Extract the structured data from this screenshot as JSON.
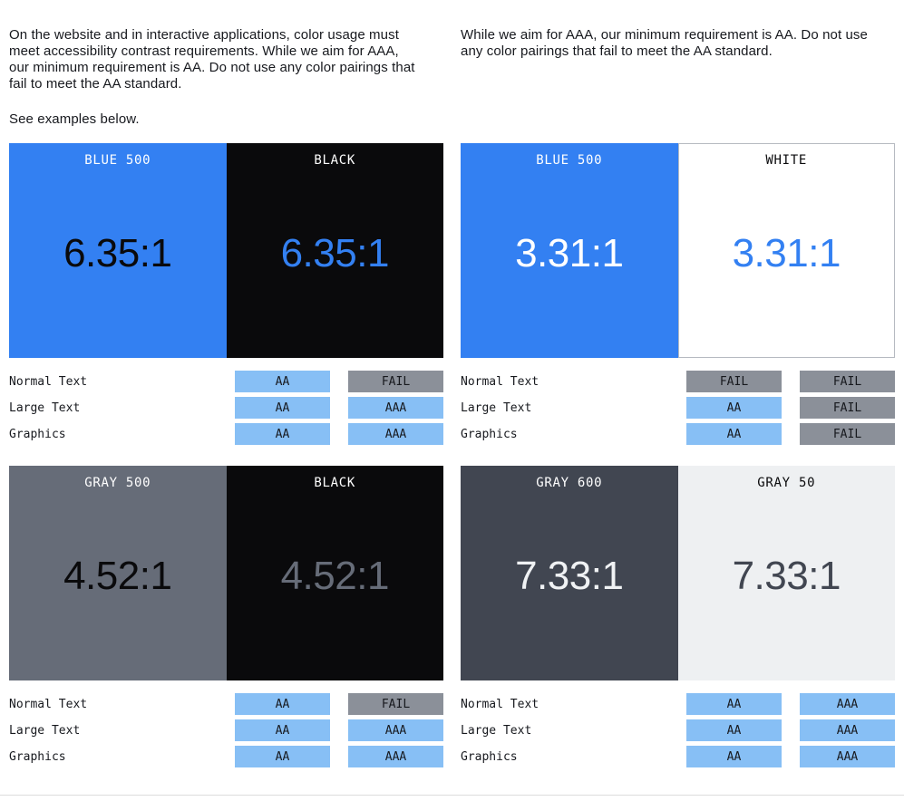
{
  "colors": {
    "blue500": "#3380F2",
    "black": "#0A0A0C",
    "white": "#FFFFFF",
    "gray500": "#666C78",
    "gray600": "#414651",
    "gray50": "#EEF0F2",
    "badge_pass": "#87BFF5",
    "badge_fail": "#8B9099",
    "text": "#17191E",
    "divider": "#DCDCDC",
    "white_border": "#B6BAC1"
  },
  "intro": {
    "left_paragraph": "On the website and in interactive applications, color usage must\nmeet accessibility contrast requirements. While we aim for AAA,\nour minimum requirement is AA. Do not use any color pairings that\nfail to meet the AA standard.",
    "see_examples": "See examples below.",
    "right_paragraph": "While we aim for AAA, our minimum requirement is AA. Do not use\nany color pairings that fail to meet the AA standard."
  },
  "cards": [
    {
      "ratio": "6.35:1",
      "left": {
        "label": "BLUE 500",
        "bg": "#3380F2",
        "label_color": "#FFFFFF",
        "ratio_color": "#0A0A0C",
        "bordered": false
      },
      "right": {
        "label": "BLACK",
        "bg": "#0A0A0C",
        "label_color": "#FFFFFF",
        "ratio_color": "#3380F2",
        "bordered": false
      },
      "rows": [
        {
          "label": "Normal Text",
          "badges": [
            {
              "text": "AA",
              "type": "pass"
            },
            {
              "text": "FAIL",
              "type": "fail"
            }
          ]
        },
        {
          "label": "Large Text",
          "badges": [
            {
              "text": "AA",
              "type": "pass"
            },
            {
              "text": "AAA",
              "type": "pass"
            }
          ]
        },
        {
          "label": "Graphics",
          "badges": [
            {
              "text": "AA",
              "type": "pass"
            },
            {
              "text": "AAA",
              "type": "pass"
            }
          ]
        }
      ]
    },
    {
      "ratio": "3.31:1",
      "left": {
        "label": "BLUE 500",
        "bg": "#3380F2",
        "label_color": "#FFFFFF",
        "ratio_color": "#FFFFFF",
        "bordered": false
      },
      "right": {
        "label": "WHITE",
        "bg": "#FFFFFF",
        "label_color": "#0A0A0C",
        "ratio_color": "#3380F2",
        "bordered": true
      },
      "rows": [
        {
          "label": "Normal Text",
          "badges": [
            {
              "text": "FAIL",
              "type": "fail"
            },
            {
              "text": "FAIL",
              "type": "fail"
            }
          ]
        },
        {
          "label": "Large Text",
          "badges": [
            {
              "text": "AA",
              "type": "pass"
            },
            {
              "text": "FAIL",
              "type": "fail"
            }
          ]
        },
        {
          "label": "Graphics",
          "badges": [
            {
              "text": "AA",
              "type": "pass"
            },
            {
              "text": "FAIL",
              "type": "fail"
            }
          ]
        }
      ]
    },
    {
      "ratio": "4.52:1",
      "left": {
        "label": "GRAY 500",
        "bg": "#666C78",
        "label_color": "#FFFFFF",
        "ratio_color": "#0A0A0C",
        "bordered": false
      },
      "right": {
        "label": "BLACK",
        "bg": "#0A0A0C",
        "label_color": "#FFFFFF",
        "ratio_color": "#666C78",
        "bordered": false
      },
      "rows": [
        {
          "label": "Normal Text",
          "badges": [
            {
              "text": "AA",
              "type": "pass"
            },
            {
              "text": "FAIL",
              "type": "fail"
            }
          ]
        },
        {
          "label": "Large Text",
          "badges": [
            {
              "text": "AA",
              "type": "pass"
            },
            {
              "text": "AAA",
              "type": "pass"
            }
          ]
        },
        {
          "label": "Graphics",
          "badges": [
            {
              "text": "AA",
              "type": "pass"
            },
            {
              "text": "AAA",
              "type": "pass"
            }
          ]
        }
      ]
    },
    {
      "ratio": "7.33:1",
      "left": {
        "label": "GRAY 600",
        "bg": "#414651",
        "label_color": "#FFFFFF",
        "ratio_color": "#F0F2F4",
        "bordered": false
      },
      "right": {
        "label": "GRAY 50",
        "bg": "#EEF0F2",
        "label_color": "#0A0A0C",
        "ratio_color": "#414651",
        "bordered": false
      },
      "rows": [
        {
          "label": "Normal Text",
          "badges": [
            {
              "text": "AA",
              "type": "pass"
            },
            {
              "text": "AAA",
              "type": "pass"
            }
          ]
        },
        {
          "label": "Large Text",
          "badges": [
            {
              "text": "AA",
              "type": "pass"
            },
            {
              "text": "AAA",
              "type": "pass"
            }
          ]
        },
        {
          "label": "Graphics",
          "badges": [
            {
              "text": "AA",
              "type": "pass"
            },
            {
              "text": "AAA",
              "type": "pass"
            }
          ]
        }
      ]
    }
  ]
}
